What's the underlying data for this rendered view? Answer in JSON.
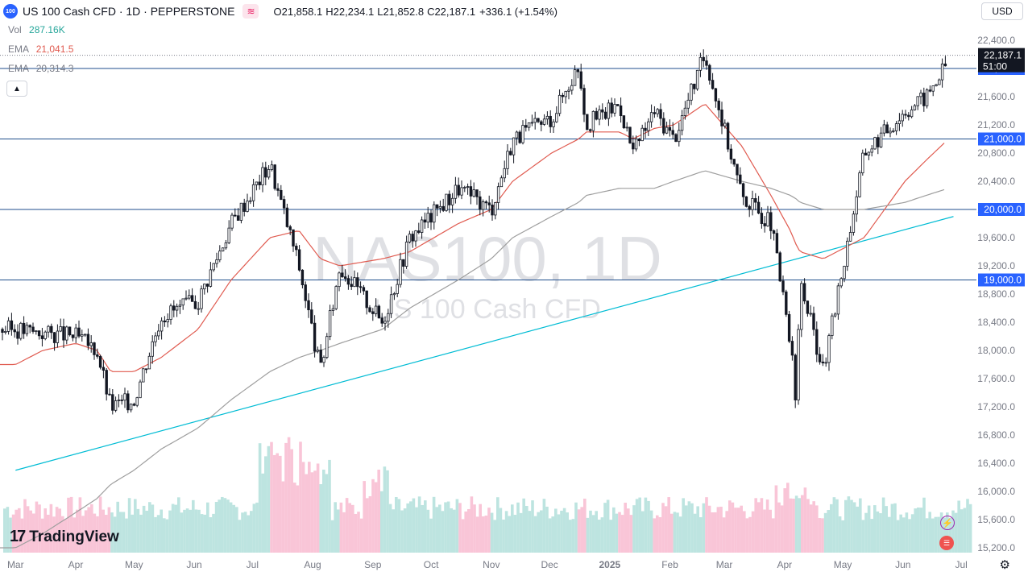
{
  "header": {
    "symbol_badge": "100",
    "title": "US 100 Cash CFD · 1D · PEPPERSTONE",
    "flag_glyph": "≋",
    "open_label": "O",
    "open": "21,858.1",
    "high_label": "H",
    "high": "22,234.1",
    "low_label": "L",
    "low": "21,852.8",
    "close_label": "C",
    "close": "22,187.1",
    "change": "+336.1 (+1.54%)"
  },
  "indicators": {
    "vol_label": "Vol",
    "vol_value": "287.16K",
    "ema1_label": "EMA",
    "ema1_value": "21,041.5",
    "ema1_color": "#e57373",
    "ema2_label": "EMA",
    "ema2_value": "20,314.3",
    "ema2_color": "#9e9e9e"
  },
  "currency": "USD",
  "collapse_icon": "chevron-up-icon",
  "watermark": {
    "symbol": "NAS100, 1D",
    "name": "US 100 Cash CFD"
  },
  "logo": {
    "text": "TradingView",
    "mark": "17"
  },
  "colors": {
    "up": "#26a69a",
    "down": "#ef5350",
    "candle": "#131722",
    "level_line": "#1f4e8c",
    "trendline": "#00bcd4",
    "price_label_bg": "#2962ff",
    "current_price_bg": "#131722"
  },
  "chart_data": {
    "type": "candlestick",
    "title": "US 100 Cash CFD · 1D · PEPPERSTONE",
    "y_axis_ticks": [
      "22,400.0",
      "22,000.0",
      "21,600.0",
      "21,200.0",
      "20,800.0",
      "20,400.0",
      "20,000.0",
      "19,600.0",
      "19,200.0",
      "18,800.0",
      "18,400.0",
      "18,000.0",
      "17,600.0",
      "17,200.0",
      "16,800.0",
      "16,400.0",
      "16,000.0",
      "15,600.0",
      "15,200.0"
    ],
    "ylim": [
      15100,
      22600
    ],
    "x_axis_ticks": [
      "Mar",
      "Apr",
      "May",
      "Jun",
      "Jul",
      "Aug",
      "Sep",
      "Oct",
      "Nov",
      "Dec",
      "2025",
      "Feb",
      "Mar",
      "Apr",
      "May",
      "Jun",
      "Jul"
    ],
    "price_levels": [
      22000,
      21000,
      20000,
      19000
    ],
    "price_level_labels": [
      "22,000.0",
      "21,000.0",
      "20,000.0",
      "19,000.0"
    ],
    "current_price": {
      "value": 22187.1,
      "label": "22,187.1",
      "countdown": "51:00"
    },
    "series": [
      {
        "name": "NAS100 close",
        "dates": [
          "2024-03-01",
          "2024-03-15",
          "2024-04-01",
          "2024-04-12",
          "2024-04-19",
          "2024-05-01",
          "2024-05-15",
          "2024-06-03",
          "2024-06-20",
          "2024-07-10",
          "2024-07-25",
          "2024-08-05",
          "2024-08-15",
          "2024-09-06",
          "2024-09-20",
          "2024-10-15",
          "2024-11-01",
          "2024-11-12",
          "2024-12-02",
          "2024-12-16",
          "2024-12-20",
          "2025-01-06",
          "2025-01-13",
          "2025-01-24",
          "2025-02-03",
          "2025-02-19",
          "2025-03-10",
          "2025-03-25",
          "2025-04-04",
          "2025-04-07",
          "2025-04-09",
          "2025-04-21",
          "2025-05-12",
          "2025-06-02",
          "2025-06-13",
          "2025-06-26"
        ],
        "values": [
          18300,
          18250,
          18200,
          18000,
          17200,
          17300,
          18500,
          18700,
          19800,
          20650,
          19200,
          17700,
          19200,
          18400,
          19600,
          20300,
          20000,
          21000,
          21300,
          22050,
          21200,
          21500,
          20800,
          21400,
          21000,
          22200,
          20200,
          19800,
          18100,
          17200,
          19000,
          17700,
          20800,
          21400,
          21600,
          22187
        ]
      },
      {
        "name": "EMA 50",
        "values": [
          17800,
          18000,
          18100,
          18000,
          17700,
          17700,
          17900,
          18300,
          19000,
          19600,
          19700,
          19300,
          19200,
          19300,
          19400,
          19800,
          20000,
          20400,
          20800,
          21000,
          21100,
          21100,
          21000,
          21150,
          21200,
          21500,
          20900,
          20200,
          19700,
          19500,
          19400,
          19300,
          19600,
          20400,
          20700,
          21041
        ]
      },
      {
        "name": "EMA 200",
        "values": [
          15200,
          15400,
          15700,
          15900,
          16100,
          16300,
          16600,
          16900,
          17300,
          17700,
          17900,
          18000,
          18100,
          18300,
          18600,
          19000,
          19300,
          19600,
          19900,
          20100,
          20200,
          20300,
          20300,
          20300,
          20400,
          20550,
          20400,
          20300,
          20200,
          20150,
          20100,
          20000,
          20000,
          20100,
          20200,
          20314
        ]
      }
    ],
    "trendline": {
      "from": {
        "date": "2024-03-01",
        "value": 16300
      },
      "to": {
        "date": "2025-06-27",
        "value": 19900
      }
    },
    "legend": "top-left",
    "grid": false
  }
}
